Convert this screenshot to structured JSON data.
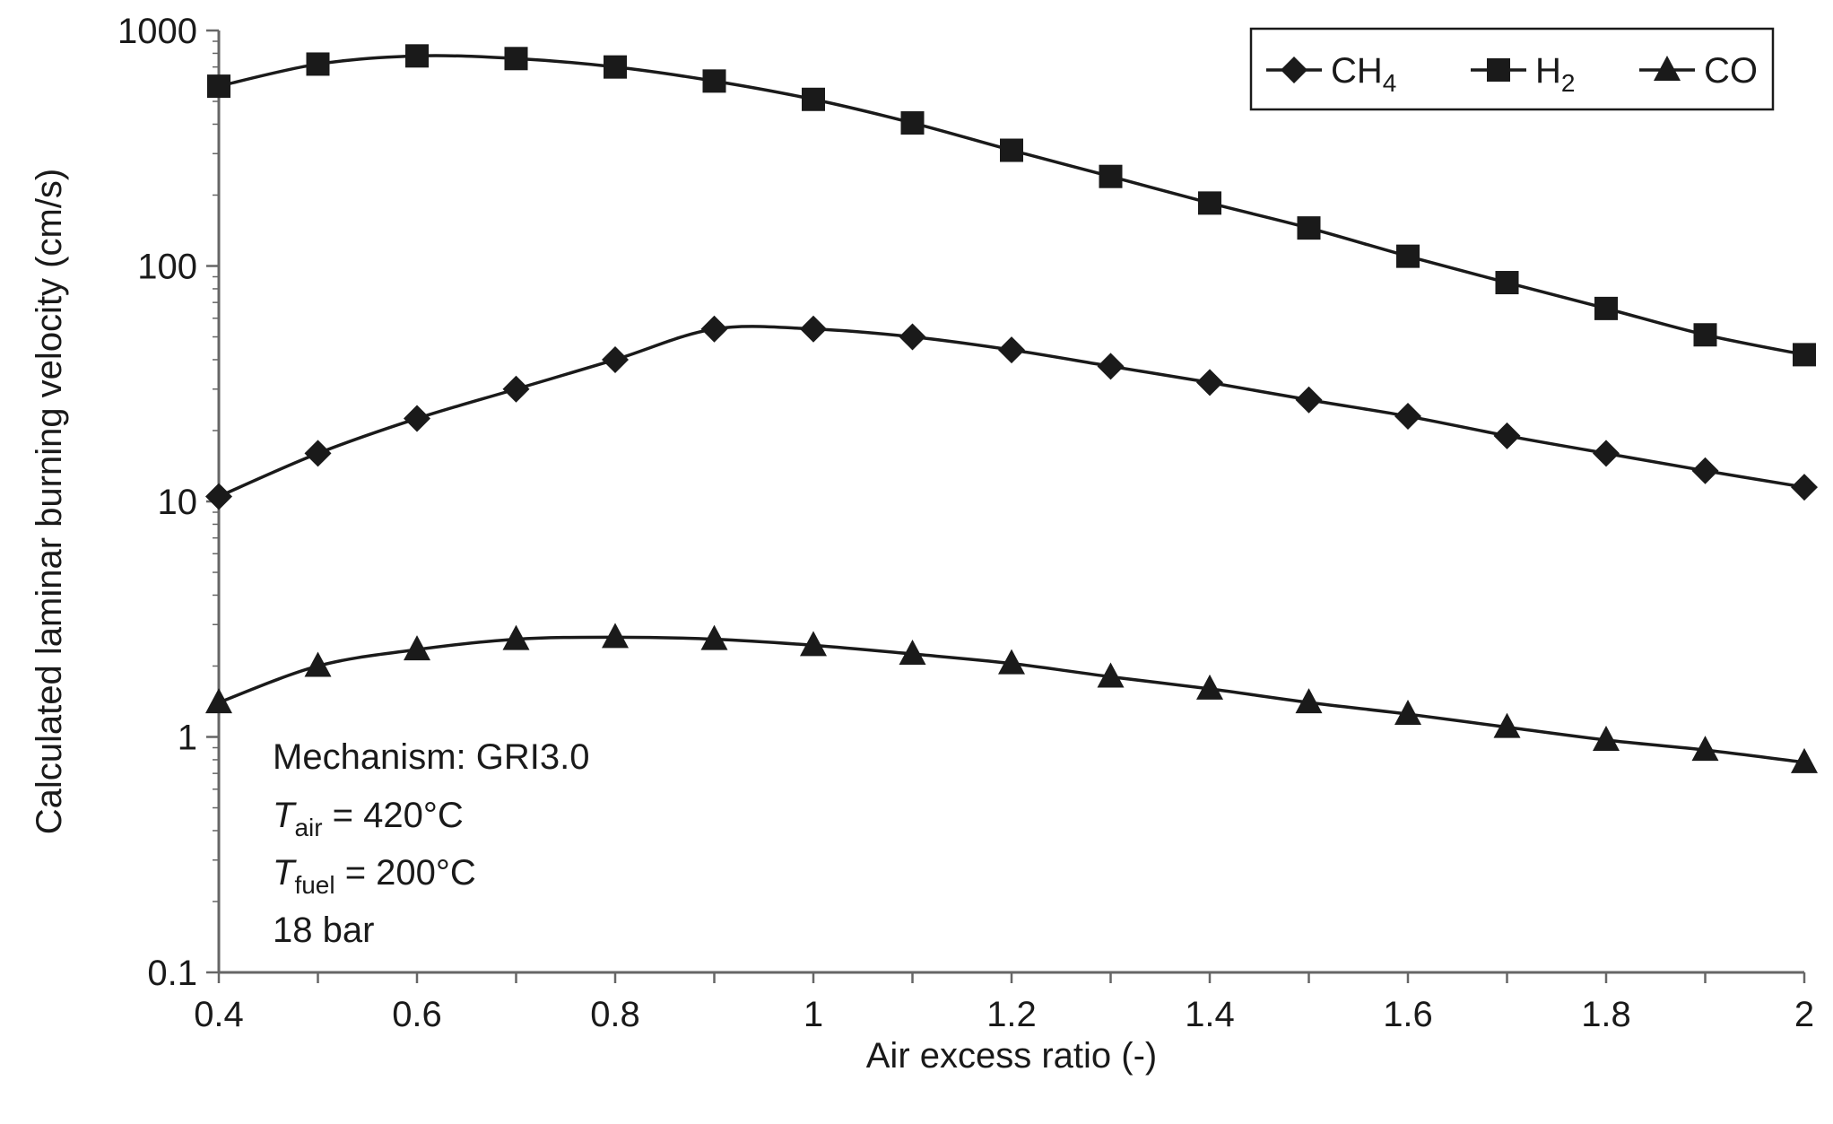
{
  "chart_data": {
    "type": "line",
    "title": "",
    "xlabel": "Air excess ratio (-)",
    "ylabel": "Calculated laminar burning velocity (cm/s)",
    "yscale": "log",
    "xlim": [
      0.4,
      2
    ],
    "ylim": [
      0.1,
      1000
    ],
    "grid": false,
    "legend_position": "top-right",
    "x_ticks": [
      0.4,
      0.6,
      0.8,
      1,
      1.2,
      1.4,
      1.6,
      1.8,
      2
    ],
    "x_tick_labels": [
      "0.4",
      "0.6",
      "0.8",
      "1",
      "1.2",
      "1.4",
      "1.6",
      "1.8",
      "2"
    ],
    "y_ticks": [
      0.1,
      1,
      10,
      100,
      1000
    ],
    "y_tick_labels": [
      "0.1",
      "1",
      "10",
      "100",
      "1000"
    ],
    "x": [
      0.4,
      0.5,
      0.6,
      0.7,
      0.8,
      0.9,
      1.0,
      1.1,
      1.2,
      1.3,
      1.4,
      1.5,
      1.6,
      1.7,
      1.8,
      1.9,
      2.0
    ],
    "series": [
      {
        "name": "CH4",
        "label_main": "CH",
        "label_sub": "4",
        "marker": "diamond",
        "values": [
          10.5,
          16,
          22.5,
          30,
          40,
          54,
          54,
          50,
          44,
          37.5,
          32,
          27,
          23,
          19,
          16,
          13.5,
          11.5
        ]
      },
      {
        "name": "H2",
        "label_main": "H",
        "label_sub": "2",
        "marker": "square",
        "values": [
          580,
          720,
          780,
          760,
          700,
          610,
          510,
          405,
          310,
          240,
          185,
          145,
          110,
          85,
          66,
          51,
          42
        ]
      },
      {
        "name": "CO",
        "label_main": "CO",
        "label_sub": "",
        "marker": "triangle",
        "values": [
          1.4,
          2.0,
          2.35,
          2.6,
          2.65,
          2.6,
          2.45,
          2.25,
          2.05,
          1.8,
          1.6,
          1.4,
          1.25,
          1.1,
          0.97,
          0.88,
          0.78
        ]
      }
    ],
    "annotations": {
      "mechanism": "Mechanism: GRI3.0",
      "t_air_symbol": "T",
      "t_air_sub": "air",
      "t_air_value": " = 420°C",
      "t_fuel_symbol": "T",
      "t_fuel_sub": "fuel",
      "t_fuel_value": " = 200°C",
      "pressure": "18 bar"
    },
    "colors": {
      "line": "#1a1a1a",
      "axis": "#666666",
      "background": "#ffffff"
    }
  }
}
